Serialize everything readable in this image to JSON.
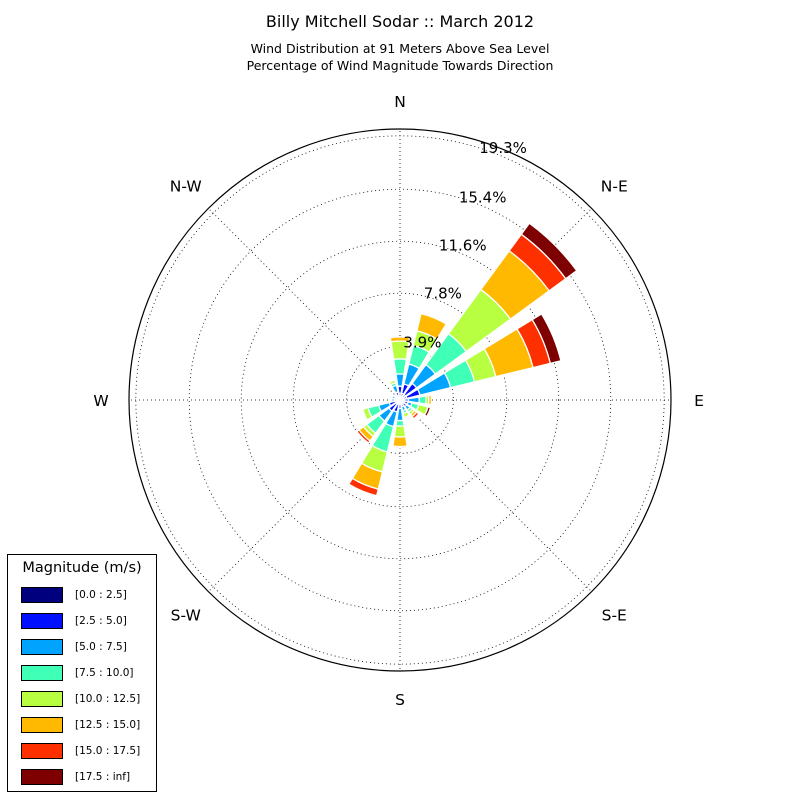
{
  "chart_data": {
    "type": "windrose",
    "title": "Billy Mitchell Sodar :: March 2012",
    "subtitle_line1": "Wind Distribution at 91 Meters Above Sea Level",
    "subtitle_line2": "Percentage of Wind Magnitude Towards Direction",
    "direction_labels": [
      "N",
      "N-E",
      "E",
      "S-E",
      "S",
      "S-W",
      "W",
      "N-W"
    ],
    "radial_ticks": [
      3.9,
      7.8,
      11.6,
      15.4,
      19.3
    ],
    "radial_tick_labels": [
      "3.9%",
      "7.8%",
      "11.6%",
      "15.4%",
      "19.3%"
    ],
    "r_max": 19.8,
    "legend_title": "Magnitude (m/s)",
    "bins": [
      {
        "label": "[0.0 : 2.5]",
        "color": "#00007f"
      },
      {
        "label": "[2.5 : 5.0]",
        "color": "#0010ff"
      },
      {
        "label": "[5.0 : 7.5]",
        "color": "#00a4ff"
      },
      {
        "label": "[7.5 : 10.0]",
        "color": "#40ffb7"
      },
      {
        "label": "[10.0 : 12.5]",
        "color": "#b7ff40"
      },
      {
        "label": "[12.5 : 15.0]",
        "color": "#ffb900"
      },
      {
        "label": "[15.0 : 17.5]",
        "color": "#ff3000"
      },
      {
        "label": "[17.5 : inf]",
        "color": "#7f0000"
      }
    ],
    "sectors": [
      {
        "direction_deg": 0,
        "cumulative": [
          0.5,
          1.0,
          1.9,
          3.0,
          4.3,
          4.6,
          4.6,
          4.6
        ]
      },
      {
        "direction_deg": 22.5,
        "cumulative": [
          0.5,
          1.2,
          2.7,
          4.1,
          5.2,
          6.5,
          6.5,
          6.5
        ]
      },
      {
        "direction_deg": 45,
        "cumulative": [
          0.5,
          1.5,
          3.2,
          6.0,
          10.0,
          13.5,
          15.0,
          16.0
        ]
      },
      {
        "direction_deg": 67.5,
        "cumulative": [
          0.5,
          1.5,
          3.8,
          5.6,
          7.2,
          10.0,
          11.3,
          12.1
        ]
      },
      {
        "direction_deg": 90,
        "cumulative": [
          0.3,
          0.6,
          1.4,
          1.9,
          2.1,
          2.3,
          2.3,
          2.3
        ]
      },
      {
        "direction_deg": 112.5,
        "cumulative": [
          0.3,
          0.6,
          0.9,
          1.4,
          2.1,
          2.1,
          2.1,
          2.3
        ]
      },
      {
        "direction_deg": 135,
        "cumulative": [
          0.3,
          0.6,
          0.9,
          1.1,
          1.3,
          1.5,
          1.7,
          1.8
        ]
      },
      {
        "direction_deg": 157.5,
        "cumulative": [
          0.3,
          0.5,
          0.8,
          1.0,
          1.3,
          1.4,
          1.4,
          1.4
        ]
      },
      {
        "direction_deg": 180,
        "cumulative": [
          0.3,
          0.6,
          1.5,
          1.9,
          2.7,
          3.4,
          3.5,
          3.5
        ]
      },
      {
        "direction_deg": 202.5,
        "cumulative": [
          0.3,
          0.9,
          2.0,
          3.9,
          5.4,
          6.7,
          7.2,
          7.2
        ]
      },
      {
        "direction_deg": 225,
        "cumulative": [
          0.3,
          1.0,
          1.9,
          3.0,
          3.3,
          3.7,
          3.9,
          3.9
        ]
      },
      {
        "direction_deg": 247.5,
        "cumulative": [
          0.3,
          0.8,
          1.6,
          2.4,
          2.8,
          2.8,
          2.8,
          2.8
        ]
      },
      {
        "direction_deg": 270,
        "cumulative": [
          0.2,
          0.4,
          0.6,
          0.7,
          0.7,
          0.7,
          0.7,
          0.7
        ]
      },
      {
        "direction_deg": 292.5,
        "cumulative": [
          0.2,
          0.4,
          0.6,
          0.7,
          0.7,
          0.7,
          0.7,
          0.7
        ]
      },
      {
        "direction_deg": 315,
        "cumulative": [
          0.2,
          0.3,
          0.4,
          0.4,
          0.4,
          0.4,
          0.4,
          0.4
        ]
      },
      {
        "direction_deg": 337.5,
        "cumulative": [
          0.3,
          0.6,
          1.1,
          1.3,
          1.5,
          1.5,
          1.5,
          1.5
        ]
      }
    ]
  }
}
